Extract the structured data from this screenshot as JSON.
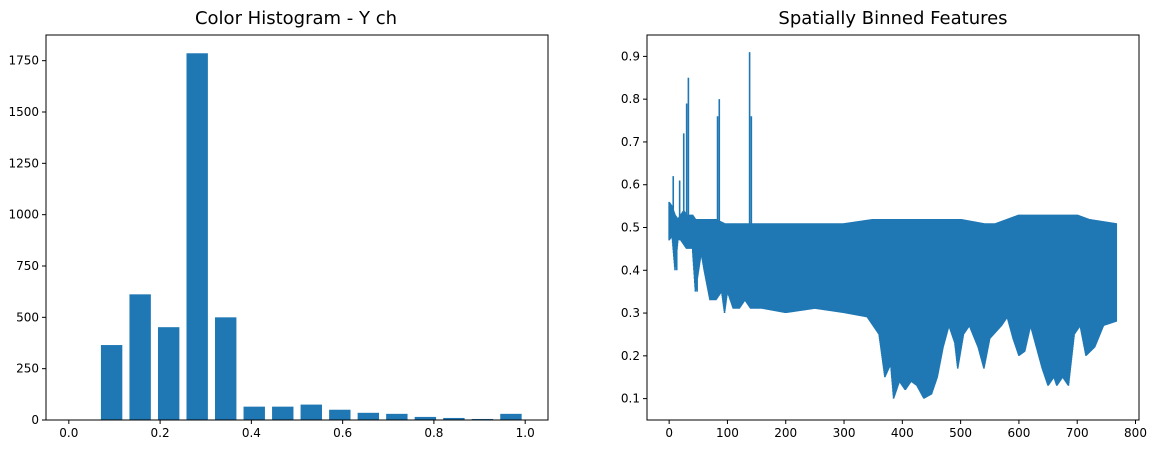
{
  "chart_data": [
    {
      "type": "bar",
      "title": "Color Histogram - Y ch",
      "xlabel": "",
      "ylabel": "",
      "color": "#1f77b4",
      "bin_centers": [
        0.0313,
        0.0938,
        0.1563,
        0.2188,
        0.2813,
        0.3438,
        0.4063,
        0.4688,
        0.5313,
        0.5938,
        0.6563,
        0.7188,
        0.7813,
        0.8438,
        0.9063,
        0.9688
      ],
      "bar_width": 0.0469,
      "values": [
        0,
        365,
        612,
        452,
        1786,
        500,
        65,
        65,
        75,
        50,
        35,
        30,
        15,
        10,
        5,
        30
      ],
      "xlim": [
        -0.05,
        1.05
      ],
      "ylim": [
        0,
        1875
      ],
      "xticks": [
        0.0,
        0.2,
        0.4,
        0.6,
        0.8,
        1.0
      ],
      "xtick_labels": [
        "0.0",
        "0.2",
        "0.4",
        "0.6",
        "0.8",
        "1.0"
      ],
      "yticks": [
        0,
        250,
        500,
        750,
        1000,
        1250,
        1500,
        1750
      ],
      "ytick_labels": [
        "0",
        "250",
        "500",
        "750",
        "1000",
        "1250",
        "1500",
        "1750"
      ]
    },
    {
      "type": "line",
      "title": "Spatially Binned Features",
      "xlabel": "",
      "ylabel": "",
      "color": "#1f77b4",
      "xlim": [
        -38,
        806
      ],
      "ylim": [
        0.05,
        0.95
      ],
      "xticks": [
        0,
        100,
        200,
        300,
        400,
        500,
        600,
        700,
        800
      ],
      "xtick_labels": [
        "0",
        "100",
        "200",
        "300",
        "400",
        "500",
        "600",
        "700",
        "800"
      ],
      "yticks": [
        0.1,
        0.2,
        0.3,
        0.4,
        0.5,
        0.6,
        0.7,
        0.8,
        0.9
      ],
      "ytick_labels": [
        "0.1",
        "0.2",
        "0.3",
        "0.4",
        "0.5",
        "0.6",
        "0.7",
        "0.8",
        "0.9"
      ],
      "series": [
        {
          "upper_envelope": [
            [
              0,
              0.56
            ],
            [
              5,
              0.55
            ],
            [
              10,
              0.53
            ],
            [
              15,
              0.52
            ],
            [
              20,
              0.53
            ],
            [
              25,
              0.54
            ],
            [
              30,
              0.53
            ],
            [
              35,
              0.53
            ],
            [
              40,
              0.53
            ],
            [
              45,
              0.52
            ],
            [
              60,
              0.52
            ],
            [
              80,
              0.52
            ],
            [
              95,
              0.51
            ],
            [
              120,
              0.51
            ],
            [
              140,
              0.51
            ],
            [
              160,
              0.51
            ],
            [
              200,
              0.51
            ],
            [
              300,
              0.51
            ],
            [
              350,
              0.52
            ],
            [
              400,
              0.52
            ],
            [
              450,
              0.52
            ],
            [
              500,
              0.52
            ],
            [
              540,
              0.51
            ],
            [
              560,
              0.51
            ],
            [
              580,
              0.52
            ],
            [
              600,
              0.53
            ],
            [
              650,
              0.53
            ],
            [
              700,
              0.53
            ],
            [
              720,
              0.52
            ],
            [
              767,
              0.51
            ]
          ],
          "lower_envelope": [
            [
              0,
              0.47
            ],
            [
              5,
              0.48
            ],
            [
              10,
              0.4
            ],
            [
              15,
              0.47
            ],
            [
              20,
              0.47
            ],
            [
              30,
              0.45
            ],
            [
              40,
              0.45
            ],
            [
              45,
              0.35
            ],
            [
              55,
              0.44
            ],
            [
              60,
              0.4
            ],
            [
              70,
              0.33
            ],
            [
              80,
              0.33
            ],
            [
              90,
              0.35
            ],
            [
              95,
              0.3
            ],
            [
              100,
              0.35
            ],
            [
              110,
              0.31
            ],
            [
              120,
              0.31
            ],
            [
              130,
              0.33
            ],
            [
              140,
              0.31
            ],
            [
              160,
              0.31
            ],
            [
              200,
              0.3
            ],
            [
              250,
              0.31
            ],
            [
              300,
              0.3
            ],
            [
              340,
              0.29
            ],
            [
              360,
              0.25
            ],
            [
              370,
              0.15
            ],
            [
              380,
              0.18
            ],
            [
              385,
              0.1
            ],
            [
              395,
              0.14
            ],
            [
              405,
              0.12
            ],
            [
              415,
              0.14
            ],
            [
              425,
              0.13
            ],
            [
              437,
              0.1
            ],
            [
              450,
              0.11
            ],
            [
              460,
              0.15
            ],
            [
              470,
              0.22
            ],
            [
              480,
              0.27
            ],
            [
              490,
              0.23
            ],
            [
              495,
              0.17
            ],
            [
              505,
              0.25
            ],
            [
              515,
              0.27
            ],
            [
              530,
              0.22
            ],
            [
              540,
              0.17
            ],
            [
              550,
              0.24
            ],
            [
              570,
              0.27
            ],
            [
              580,
              0.29
            ],
            [
              590,
              0.24
            ],
            [
              600,
              0.2
            ],
            [
              610,
              0.21
            ],
            [
              620,
              0.27
            ],
            [
              630,
              0.22
            ],
            [
              640,
              0.17
            ],
            [
              650,
              0.13
            ],
            [
              660,
              0.15
            ],
            [
              665,
              0.13
            ],
            [
              675,
              0.15
            ],
            [
              685,
              0.13
            ],
            [
              695,
              0.25
            ],
            [
              705,
              0.27
            ],
            [
              715,
              0.2
            ],
            [
              730,
              0.22
            ],
            [
              745,
              0.27
            ],
            [
              767,
              0.28
            ]
          ],
          "spikes": [
            [
              7,
              0.62
            ],
            [
              18,
              0.61
            ],
            [
              25,
              0.72
            ],
            [
              30,
              0.79
            ],
            [
              33,
              0.85
            ],
            [
              83,
              0.76
            ],
            [
              86,
              0.8
            ],
            [
              138,
              0.91
            ],
            [
              141,
              0.76
            ]
          ],
          "dips": [
            [
              13,
              0.4
            ],
            [
              48,
              0.35
            ]
          ]
        }
      ]
    }
  ]
}
